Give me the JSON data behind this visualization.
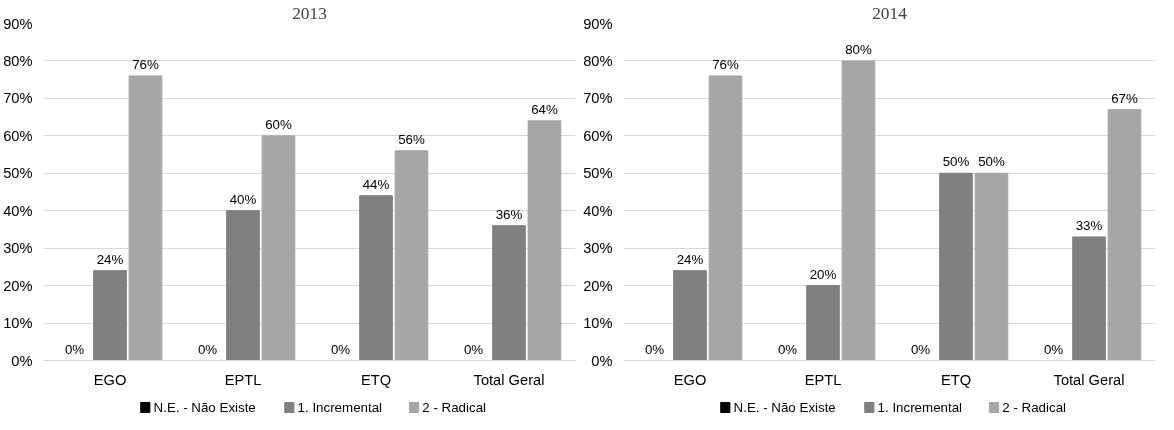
{
  "chart_data": [
    {
      "type": "bar",
      "title": "2013",
      "categories": [
        "EGO",
        "EPTL",
        "ETQ",
        "Total Geral"
      ],
      "series": [
        {
          "name": "N.E. - Não Existe",
          "color": "#000000",
          "values": [
            0,
            0,
            0,
            0
          ],
          "value_labels": [
            "0%",
            "0%",
            "0%",
            "0%"
          ]
        },
        {
          "name": "1. Incremental",
          "color": "#808080",
          "values": [
            24,
            40,
            44,
            36
          ],
          "value_labels": [
            "24%",
            "40%",
            "44%",
            "36%"
          ]
        },
        {
          "name": "2 - Radical",
          "color": "#a6a6a6",
          "values": [
            76,
            60,
            56,
            64
          ],
          "value_labels": [
            "76%",
            "60%",
            "56%",
            "64%"
          ]
        }
      ],
      "ylim": [
        0,
        90
      ],
      "yticks": [
        {
          "value": 0,
          "label": "0%"
        },
        {
          "value": 10,
          "label": "10%"
        },
        {
          "value": 20,
          "label": "20%"
        },
        {
          "value": 30,
          "label": "30%"
        },
        {
          "value": 40,
          "label": "40%"
        },
        {
          "value": 50,
          "label": "50%"
        },
        {
          "value": 60,
          "label": "60%"
        },
        {
          "value": 70,
          "label": "70%"
        },
        {
          "value": 80,
          "label": "80%"
        },
        {
          "value": 90,
          "label": "90%"
        }
      ],
      "grid": "y",
      "legend": "bottom"
    },
    {
      "type": "bar",
      "title": "2014",
      "categories": [
        "EGO",
        "EPTL",
        "ETQ",
        "Total Geral"
      ],
      "series": [
        {
          "name": "N.E. - Não Existe",
          "color": "#000000",
          "values": [
            0,
            0,
            0,
            0
          ],
          "value_labels": [
            "0%",
            "0%",
            "0%",
            "0%"
          ]
        },
        {
          "name": "1. Incremental",
          "color": "#808080",
          "values": [
            24,
            20,
            50,
            33
          ],
          "value_labels": [
            "24%",
            "20%",
            "50%",
            "33%"
          ]
        },
        {
          "name": "2 - Radical",
          "color": "#a6a6a6",
          "values": [
            76,
            80,
            50,
            67
          ],
          "value_labels": [
            "76%",
            "80%",
            "50%",
            "67%"
          ]
        }
      ],
      "ylim": [
        0,
        90
      ],
      "yticks": [
        {
          "value": 0,
          "label": "0%"
        },
        {
          "value": 10,
          "label": "10%"
        },
        {
          "value": 20,
          "label": "20%"
        },
        {
          "value": 30,
          "label": "30%"
        },
        {
          "value": 40,
          "label": "40%"
        },
        {
          "value": 50,
          "label": "50%"
        },
        {
          "value": 60,
          "label": "60%"
        },
        {
          "value": 70,
          "label": "70%"
        },
        {
          "value": 80,
          "label": "80%"
        },
        {
          "value": 90,
          "label": "90%"
        }
      ],
      "grid": "y",
      "legend": "bottom"
    }
  ]
}
